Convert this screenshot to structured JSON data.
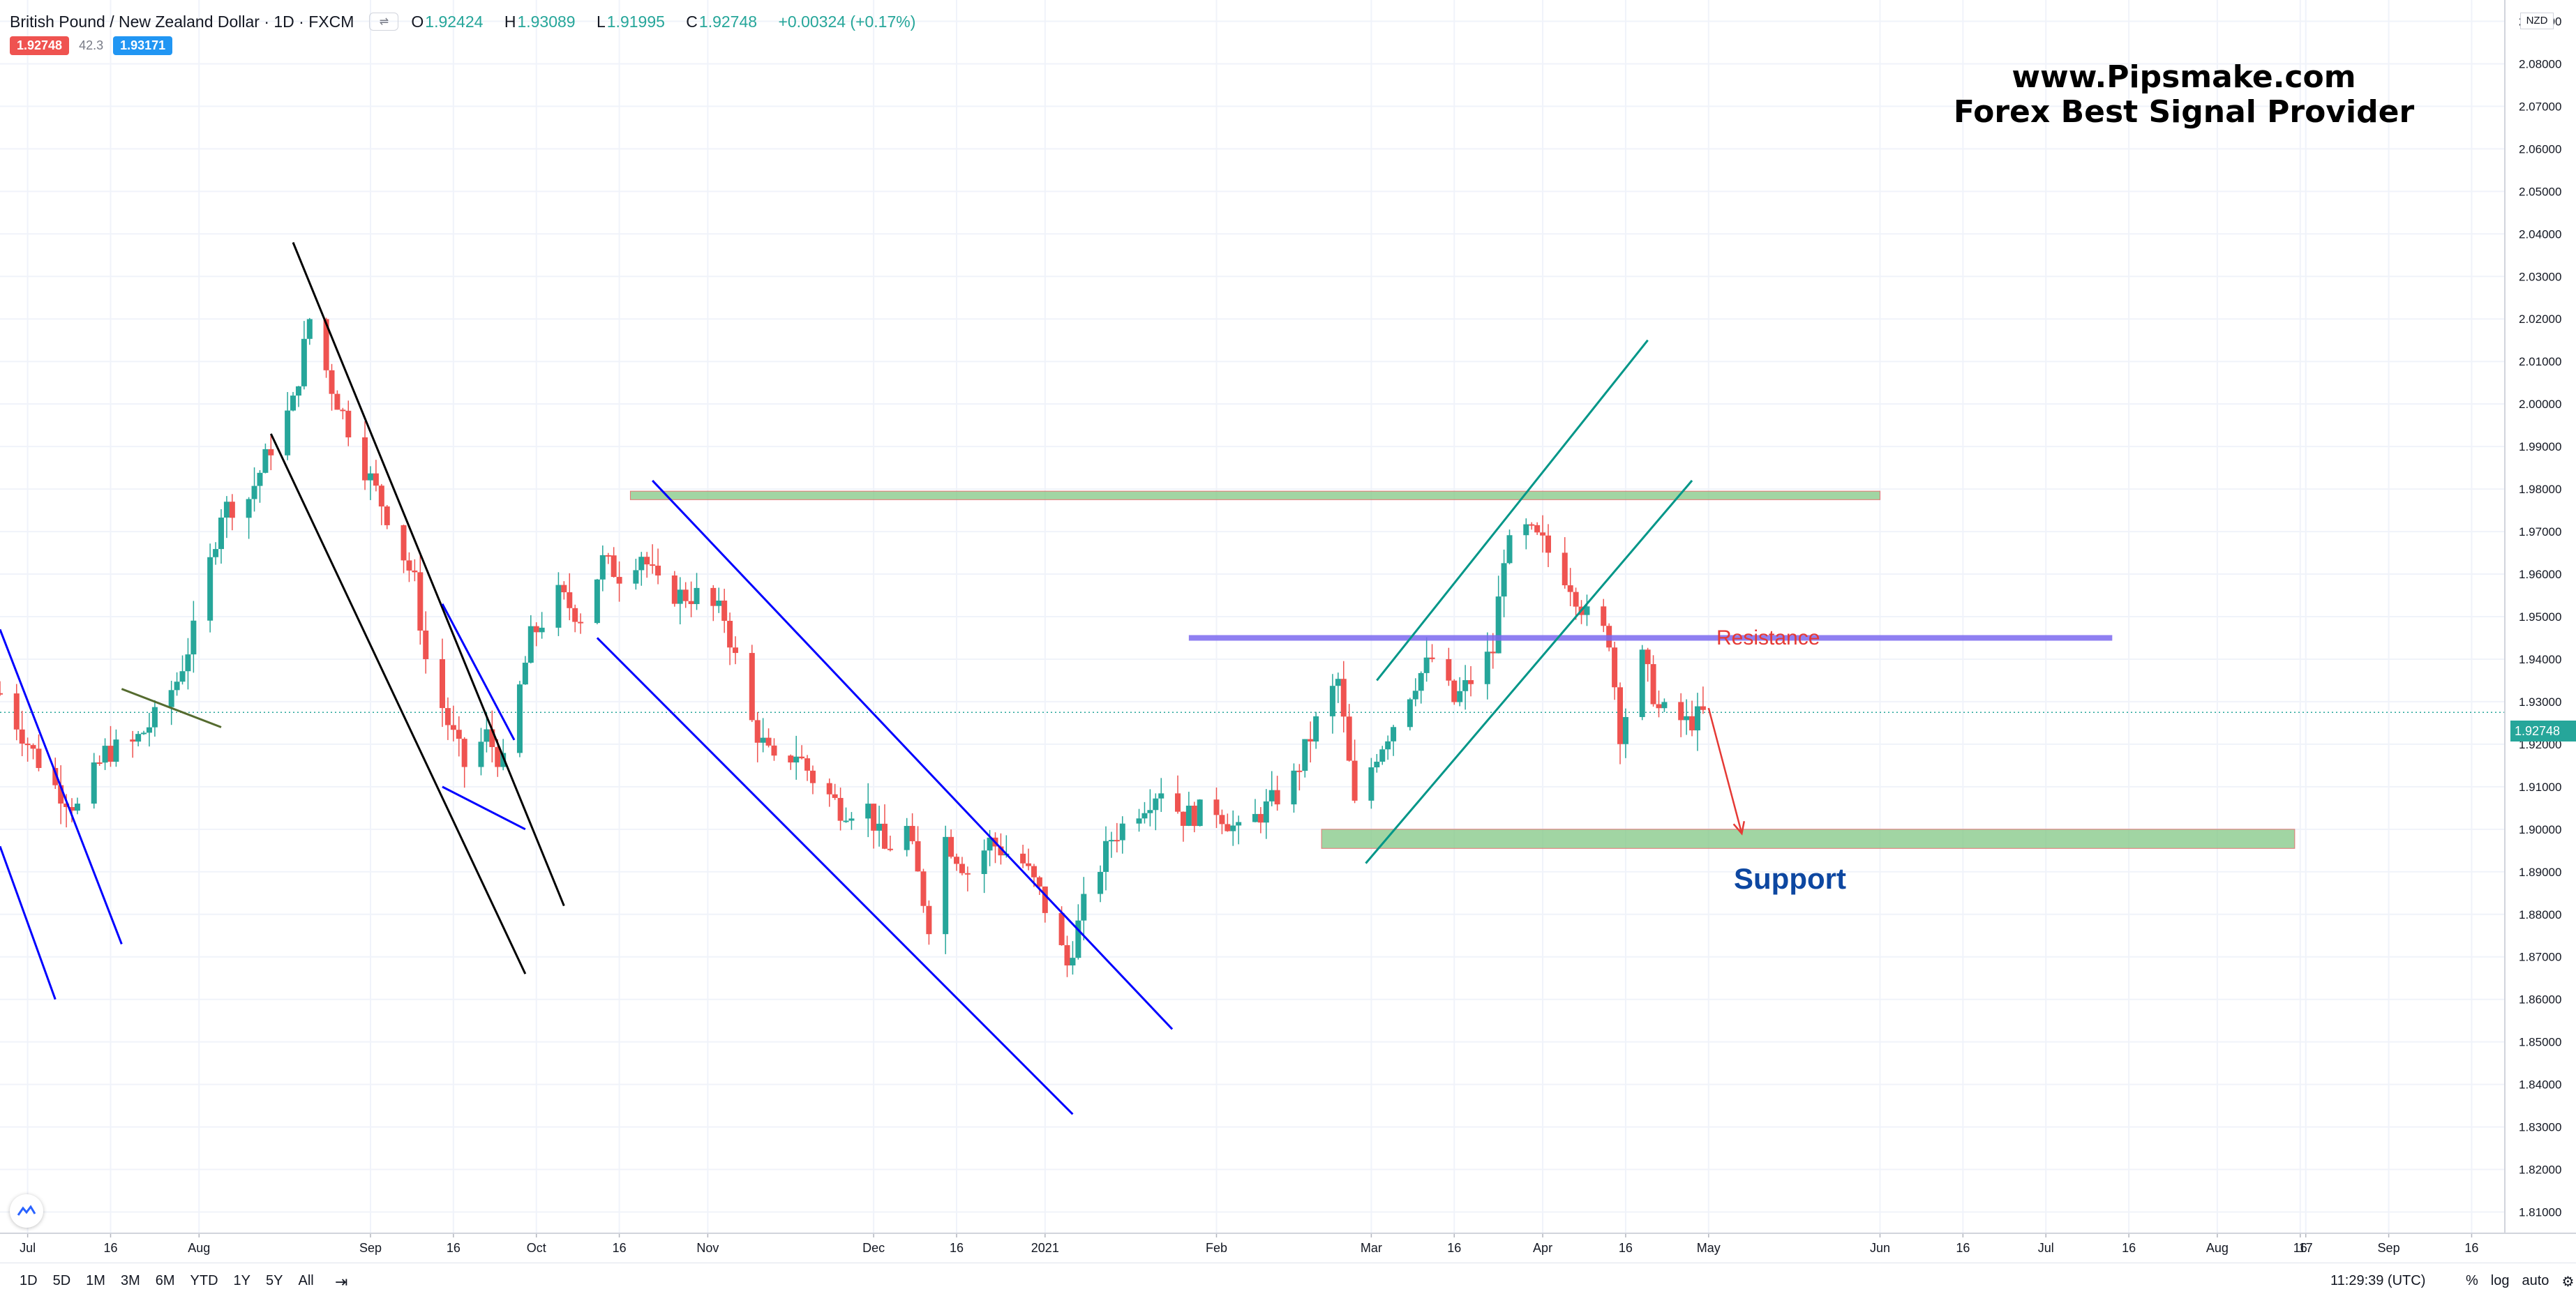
{
  "header": {
    "symbol_title": "British Pound / New Zealand Dollar · 1D · FXCM",
    "ohlc": {
      "open": "1.92424",
      "high": "1.93089",
      "low": "1.91995",
      "close": "1.92748",
      "change": "+0.00324 (+0.17%)"
    },
    "bid_badge": "1.92748",
    "spread": "42.3",
    "ask_badge": "1.93171"
  },
  "watermark": {
    "line1": "www.Pipsmake.com",
    "line2": "Forex Best Signal Provider"
  },
  "annotations": {
    "resistance_label": "Resistance",
    "support_label": "Support"
  },
  "price_axis": {
    "currency": "NZD",
    "last_price": "1.92748"
  },
  "bottom_toolbar": {
    "ranges": [
      "1D",
      "5D",
      "1M",
      "3M",
      "6M",
      "YTD",
      "1Y",
      "5Y",
      "All"
    ],
    "clock": "11:29:39 (UTC)",
    "percent_label": "%",
    "log_label": "log",
    "auto_label": "auto"
  },
  "colors": {
    "up": "#26a69a",
    "down": "#ef5350",
    "resistance": "#7b68ee",
    "zone": "#81c784",
    "accent": "#2196f3"
  },
  "chart_data": {
    "type": "candlestick",
    "title": "British Pound / New Zealand Dollar · 1D · FXCM",
    "xlabel": "",
    "ylabel": "",
    "ylim": [
      1.805,
      2.095
    ],
    "y_ticks": [
      1.81,
      1.82,
      1.83,
      1.84,
      1.85,
      1.86,
      1.87,
      1.88,
      1.89,
      1.9,
      1.91,
      1.92,
      1.93,
      1.94,
      1.95,
      1.96,
      1.97,
      1.98,
      1.99,
      2.0,
      2.01,
      2.02,
      2.03,
      2.04,
      2.05,
      2.06,
      2.07,
      2.08,
      2.09
    ],
    "x_ticks": [
      {
        "label": "Jul",
        "date": "2020-07-01"
      },
      {
        "label": "16",
        "date": "2020-07-16"
      },
      {
        "label": "Aug",
        "date": "2020-08-01"
      },
      {
        "label": "Sep",
        "date": "2020-09-01"
      },
      {
        "label": "16",
        "date": "2020-09-16"
      },
      {
        "label": "Oct",
        "date": "2020-10-01"
      },
      {
        "label": "16",
        "date": "2020-10-16"
      },
      {
        "label": "Nov",
        "date": "2020-11-01"
      },
      {
        "label": "Dec",
        "date": "2020-12-01"
      },
      {
        "label": "16",
        "date": "2020-12-16"
      },
      {
        "label": "2021",
        "date": "2021-01-01"
      },
      {
        "label": "Feb",
        "date": "2021-02-01"
      },
      {
        "label": "Mar",
        "date": "2021-03-01"
      },
      {
        "label": "16",
        "date": "2021-03-16"
      },
      {
        "label": "Apr",
        "date": "2021-04-01"
      },
      {
        "label": "16",
        "date": "2021-04-16"
      },
      {
        "label": "May",
        "date": "2021-05-01"
      },
      {
        "label": "Jun",
        "date": "2021-06-01"
      },
      {
        "label": "16",
        "date": "2021-06-16"
      },
      {
        "label": "Jul",
        "date": "2021-07-01"
      },
      {
        "label": "16",
        "date": "2021-07-16"
      },
      {
        "label": "Aug",
        "date": "2021-08-01"
      },
      {
        "label": "16",
        "date": "2021-08-16"
      },
      {
        "label": "17",
        "date": "2021-08-17"
      },
      {
        "label": "Sep",
        "date": "2021-09-01"
      },
      {
        "label": "16",
        "date": "2021-09-16"
      }
    ],
    "price_path": [
      [
        "2020-06-26",
        1.932
      ],
      [
        "2020-07-02",
        1.918
      ],
      [
        "2020-07-06",
        1.91
      ],
      [
        "2020-07-10",
        1.905
      ],
      [
        "2020-07-15",
        1.918
      ],
      [
        "2020-07-20",
        1.92
      ],
      [
        "2020-07-24",
        1.926
      ],
      [
        "2020-07-28",
        1.935
      ],
      [
        "2020-08-01",
        1.95
      ],
      [
        "2020-08-05",
        1.975
      ],
      [
        "2020-08-10",
        1.978
      ],
      [
        "2020-08-14",
        1.99
      ],
      [
        "2020-08-18",
        2.0
      ],
      [
        "2020-08-21",
        2.02
      ],
      [
        "2020-08-25",
        2.004
      ],
      [
        "2020-08-31",
        1.985
      ],
      [
        "2020-09-04",
        1.974
      ],
      [
        "2020-09-09",
        1.958
      ],
      [
        "2020-09-11",
        1.94
      ],
      [
        "2020-09-15",
        1.925
      ],
      [
        "2020-09-18",
        1.915
      ],
      [
        "2020-09-22",
        1.922
      ],
      [
        "2020-09-25",
        1.915
      ],
      [
        "2020-09-30",
        1.945
      ],
      [
        "2020-10-05",
        1.955
      ],
      [
        "2020-10-09",
        1.95
      ],
      [
        "2020-10-13",
        1.963
      ],
      [
        "2020-10-16",
        1.96
      ],
      [
        "2020-10-20",
        1.965
      ],
      [
        "2020-10-23",
        1.957
      ],
      [
        "2020-10-27",
        1.955
      ],
      [
        "2020-10-30",
        1.955
      ],
      [
        "2020-11-04",
        1.95
      ],
      [
        "2020-11-09",
        1.925
      ],
      [
        "2020-11-13",
        1.915
      ],
      [
        "2020-11-17",
        1.918
      ],
      [
        "2020-11-20",
        1.912
      ],
      [
        "2020-11-25",
        1.905
      ],
      [
        "2020-11-30",
        1.905
      ],
      [
        "2020-12-03",
        1.895
      ],
      [
        "2020-12-07",
        1.9
      ],
      [
        "2020-12-11",
        1.878
      ],
      [
        "2020-12-14",
        1.898
      ],
      [
        "2020-12-18",
        1.89
      ],
      [
        "2020-12-22",
        1.897
      ],
      [
        "2020-12-28",
        1.892
      ],
      [
        "2020-12-31",
        1.885
      ],
      [
        "2021-01-05",
        1.868
      ],
      [
        "2021-01-08",
        1.882
      ],
      [
        "2021-01-13",
        1.898
      ],
      [
        "2021-01-18",
        1.905
      ],
      [
        "2021-01-22",
        1.91
      ],
      [
        "2021-01-26",
        1.903
      ],
      [
        "2021-02-01",
        1.905
      ],
      [
        "2021-02-05",
        1.899
      ],
      [
        "2021-02-10",
        1.905
      ],
      [
        "2021-02-15",
        1.912
      ],
      [
        "2021-02-19",
        1.925
      ],
      [
        "2021-02-23",
        1.935
      ],
      [
        "2021-02-26",
        1.905
      ],
      [
        "2021-03-02",
        1.918
      ],
      [
        "2021-03-05",
        1.925
      ],
      [
        "2021-03-09",
        1.935
      ],
      [
        "2021-03-12",
        1.94
      ],
      [
        "2021-03-16",
        1.93
      ],
      [
        "2021-03-19",
        1.935
      ],
      [
        "2021-03-23",
        1.942
      ],
      [
        "2021-03-25",
        1.965
      ],
      [
        "2021-03-29",
        1.97
      ],
      [
        "2021-04-01",
        1.967
      ],
      [
        "2021-04-06",
        1.958
      ],
      [
        "2021-04-09",
        1.95
      ],
      [
        "2021-04-13",
        1.945
      ],
      [
        "2021-04-15",
        1.923
      ],
      [
        "2021-04-19",
        1.94
      ],
      [
        "2021-04-22",
        1.928
      ],
      [
        "2021-04-27",
        1.925
      ],
      [
        "2021-04-30",
        1.927
      ]
    ],
    "last_close": 1.92748,
    "annotations": [
      {
        "kind": "zone",
        "label": "",
        "from": "2020-10-18",
        "to": "2021-06-01",
        "y": [
          1.9775,
          1.9795
        ]
      },
      {
        "kind": "zone",
        "label": "Support",
        "from": "2021-02-20",
        "to": "2021-08-15",
        "y": [
          1.8955,
          1.9
        ],
        "text_date": "2021-05-04",
        "text_y": 1.89
      },
      {
        "kind": "level",
        "label": "Resistance",
        "from": "2021-01-27",
        "to": "2021-07-13",
        "y": 1.945,
        "text_date": "2021-04-30",
        "text_y": 1.9485
      },
      {
        "kind": "arrow",
        "from": [
          "2021-05-01",
          1.9285
        ],
        "to": [
          "2021-05-07",
          1.899
        ]
      },
      {
        "kind": "trendline",
        "color": "#000000",
        "from": [
          "2020-08-18",
          2.038
        ],
        "to": [
          "2020-10-06",
          1.882
        ]
      },
      {
        "kind": "trendline",
        "color": "#000000",
        "from": [
          "2020-08-14",
          1.993
        ],
        "to": [
          "2020-09-29",
          1.866
        ]
      },
      {
        "kind": "trendline",
        "color": "#0000ff",
        "from": [
          "2020-10-22",
          1.982
        ],
        "to": [
          "2021-01-24",
          1.853
        ]
      },
      {
        "kind": "trendline",
        "color": "#0000ff",
        "from": [
          "2020-10-12",
          1.945
        ],
        "to": [
          "2021-01-06",
          1.833
        ]
      },
      {
        "kind": "trendline",
        "color": "#0000ff",
        "from": [
          "2020-09-14",
          1.953
        ],
        "to": [
          "2020-09-27",
          1.921
        ]
      },
      {
        "kind": "trendline",
        "color": "#0000ff",
        "from": [
          "2020-09-14",
          1.91
        ],
        "to": [
          "2020-09-29",
          1.9
        ]
      },
      {
        "kind": "trendline",
        "color": "#0000ff",
        "from": [
          "2020-06-26",
          1.947
        ],
        "to": [
          "2020-07-18",
          1.873
        ]
      },
      {
        "kind": "trendline",
        "color": "#0000ff",
        "from": [
          "2020-06-26",
          1.896
        ],
        "to": [
          "2020-07-06",
          1.86
        ]
      },
      {
        "kind": "trendline",
        "color": "#556b2f",
        "from": [
          "2020-07-18",
          1.933
        ],
        "to": [
          "2020-08-05",
          1.924
        ]
      },
      {
        "kind": "trendline",
        "color": "#009688",
        "from": [
          "2021-02-28",
          1.892
        ],
        "to": [
          "2021-04-28",
          1.982
        ]
      },
      {
        "kind": "trendline",
        "color": "#009688",
        "from": [
          "2021-03-02",
          1.935
        ],
        "to": [
          "2021-04-20",
          2.015
        ]
      }
    ]
  }
}
